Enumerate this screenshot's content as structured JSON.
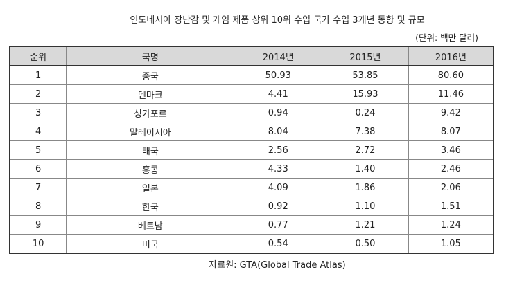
{
  "title": "인도네시아 장난감 및 게임 제품 상위 10위 수입 국가 수입 3개년 동향 및 규모",
  "unit": "(단위: 백만 달러)",
  "table": {
    "header": [
      "순위",
      "국명",
      "2014년",
      "2015년",
      "2016년"
    ],
    "rows": [
      [
        "1",
        "중국",
        "50.93",
        "53.85",
        "80.60"
      ],
      [
        "2",
        "덴마크",
        "4.41",
        "15.93",
        "11.46"
      ],
      [
        "3",
        "싱가포르",
        "0.94",
        "0.24",
        "9.42"
      ],
      [
        "4",
        "말레이시아",
        "8.04",
        "7.38",
        "8.07"
      ],
      [
        "5",
        "태국",
        "2.56",
        "2.72",
        "3.46"
      ],
      [
        "6",
        "홍콩",
        "4.33",
        "1.40",
        "2.46"
      ],
      [
        "7",
        "일본",
        "4.09",
        "1.86",
        "2.06"
      ],
      [
        "8",
        "한국",
        "0.92",
        "1.10",
        "1.51"
      ],
      [
        "9",
        "베트남",
        "0.77",
        "1.21",
        "1.24"
      ],
      [
        "10",
        "미국",
        "0.54",
        "0.50",
        "1.05"
      ]
    ]
  },
  "source": "자료원: GTA(Global Trade Atlas)"
}
